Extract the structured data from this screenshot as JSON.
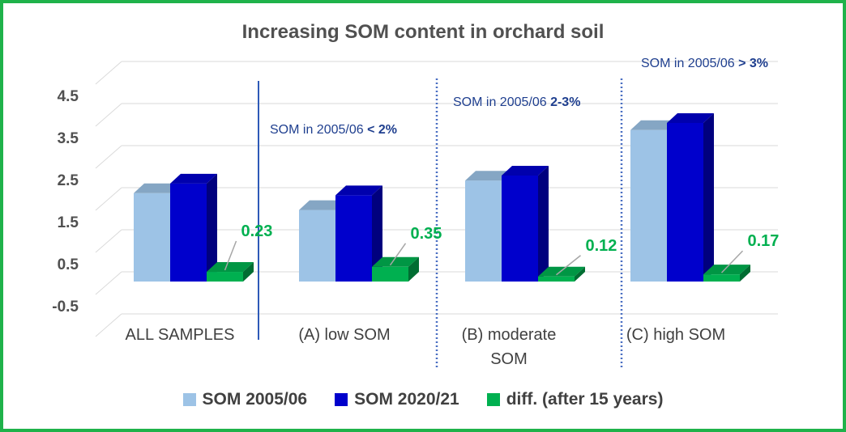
{
  "chart_data": {
    "type": "bar",
    "title": "Increasing SOM content in orchard soil",
    "categories": [
      "ALL SAMPLES",
      "(A) low SOM",
      "(B) moderate SOM",
      "(C) high SOM"
    ],
    "series": [
      {
        "name": "SOM 2005/06",
        "color": "#9dc3e6",
        "values": [
          2.1,
          1.7,
          2.4,
          3.6
        ]
      },
      {
        "name": "SOM 2020/21",
        "color": "#0000cc",
        "values": [
          2.33,
          2.05,
          2.52,
          3.77
        ]
      },
      {
        "name": "diff. (after 15 years)",
        "color": "#00b050",
        "values": [
          0.23,
          0.35,
          0.12,
          0.17
        ],
        "labels": [
          "0.23",
          "0.35",
          "0.12",
          "0.17"
        ]
      }
    ],
    "yticks": [
      "4.5",
      "3.5",
      "2.5",
      "1.5",
      "0.5",
      "-0.5"
    ],
    "ylim": [
      -1,
      5
    ],
    "annotations": [
      {
        "prefix": "SOM in 2005/06 ",
        "bold": "< 2%"
      },
      {
        "prefix": "SOM in 2005/06 ",
        "bold": "2-3%"
      },
      {
        "prefix": "SOM in 2005/06 ",
        "bold": "> 3%"
      }
    ]
  }
}
